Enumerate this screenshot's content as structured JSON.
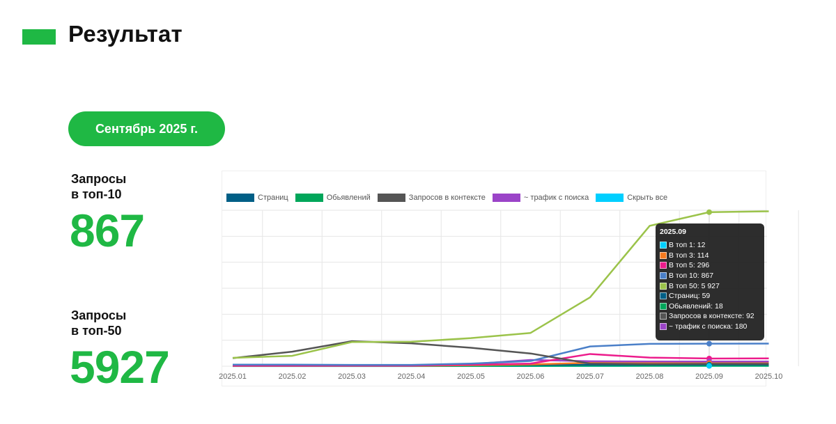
{
  "page": {
    "title": "Результат",
    "period": "Сентябрь 2025 г.",
    "accent": "#1fb844"
  },
  "kpis": [
    {
      "label_line1": "Запросы",
      "label_line2": "в топ-10",
      "value": "867"
    },
    {
      "label_line1": "Запросы",
      "label_line2": "в топ-50",
      "value": "5927"
    }
  ],
  "legend": [
    {
      "label": "Страниц",
      "color": "#005f86"
    },
    {
      "label": "Обьявлений",
      "color": "#00a65a"
    },
    {
      "label": "Запросов в контексте",
      "color": "#555555"
    },
    {
      "label": "~ трафик с поиска",
      "color": "#9b44c8"
    },
    {
      "label": "Скрыть все",
      "color": "#00cfff"
    }
  ],
  "tooltip": {
    "title": "2025.09",
    "rows": [
      {
        "text": "В топ 1: 12",
        "color": "#00cfff"
      },
      {
        "text": "В топ 3: 114",
        "color": "#f47a20"
      },
      {
        "text": "В топ 5: 296",
        "color": "#ec1c8c"
      },
      {
        "text": "В топ 10: 867",
        "color": "#4a7fc8"
      },
      {
        "text": "В топ 50: 5 927",
        "color": "#9bc34a"
      },
      {
        "text": "Страниц: 59",
        "color": "#005f86"
      },
      {
        "text": "Обьявлений: 18",
        "color": "#00a65a"
      },
      {
        "text": "Запросов в контексте: 92",
        "color": "#555555"
      },
      {
        "text": "~ трафик с поиска: 180",
        "color": "#9b44c8"
      }
    ]
  },
  "chart_data": {
    "type": "line",
    "categories": [
      "2025.01",
      "2025.02",
      "2025.03",
      "2025.04",
      "2025.05",
      "2025.06",
      "2025.07",
      "2025.08",
      "2025.09",
      "2025.10"
    ],
    "ylim": [
      0,
      6000
    ],
    "grid": true,
    "legend_position": "top-left",
    "highlight_category": "2025.09",
    "series": [
      {
        "name": "В топ 50",
        "color": "#9bc34a",
        "values": [
          320,
          400,
          930,
          940,
          1080,
          1280,
          2650,
          5400,
          5927,
          5960
        ]
      },
      {
        "name": "Запросов в контексте",
        "color": "#555555",
        "values": [
          310,
          560,
          960,
          880,
          710,
          490,
          100,
          80,
          92,
          90
        ]
      },
      {
        "name": "В топ 10",
        "color": "#4a7fc8",
        "values": [
          60,
          60,
          50,
          50,
          100,
          200,
          760,
          860,
          867,
          870
        ]
      },
      {
        "name": "В топ 5",
        "color": "#ec1c8c",
        "values": [
          30,
          30,
          30,
          30,
          60,
          100,
          470,
          330,
          296,
          300
        ]
      },
      {
        "name": "~ трафик с поиска",
        "color": "#9b44c8",
        "values": [
          20,
          20,
          20,
          20,
          80,
          240,
          190,
          180,
          180,
          180
        ]
      },
      {
        "name": "В топ 3",
        "color": "#f47a20",
        "values": [
          10,
          10,
          10,
          10,
          40,
          70,
          130,
          120,
          114,
          115
        ]
      },
      {
        "name": "Страниц",
        "color": "#005f86",
        "values": [
          40,
          40,
          40,
          40,
          50,
          55,
          58,
          59,
          59,
          59
        ]
      },
      {
        "name": "Обьявлений",
        "color": "#00a65a",
        "values": [
          10,
          10,
          10,
          10,
          12,
          15,
          18,
          18,
          18,
          18
        ]
      },
      {
        "name": "В топ 1",
        "color": "#00cfff",
        "values": [
          5,
          5,
          5,
          5,
          6,
          8,
          10,
          12,
          12,
          12
        ]
      }
    ]
  }
}
